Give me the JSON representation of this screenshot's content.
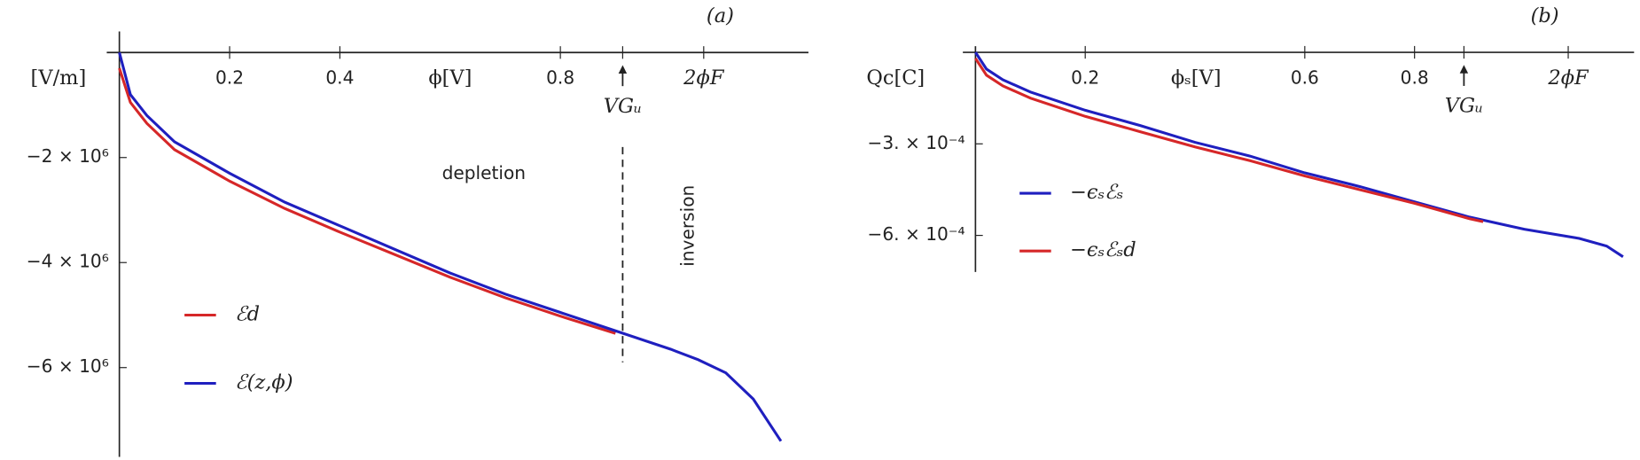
{
  "chart_data": [
    {
      "type": "line",
      "title": "(a)",
      "ylabel": "[V/m]",
      "xlabel": "ϕ[V]",
      "xlim": [
        0,
        1.25
      ],
      "ylim": [
        -7700000,
        400000
      ],
      "xticks": [
        0.2,
        0.4,
        0.8
      ],
      "yticks": [
        {
          "value": -2000000,
          "label": "−2 × 10⁶"
        },
        {
          "value": -4000000,
          "label": "−4 × 10⁶"
        },
        {
          "value": -6000000,
          "label": "−6 × 10⁶"
        }
      ],
      "markers": [
        {
          "label": "VGᵤ",
          "x": 0.913
        },
        {
          "label": "2ϕF",
          "x": 1.06
        }
      ],
      "dashed_x": 0.913,
      "regions": [
        "depletion",
        "inversion"
      ],
      "series": [
        {
          "name": "ℰd",
          "color": "#d62728",
          "x": [
            0,
            0.02,
            0.05,
            0.1,
            0.2,
            0.3,
            0.4,
            0.5,
            0.6,
            0.7,
            0.8,
            0.9
          ],
          "values": [
            -300000,
            -950000,
            -1350000,
            -1850000,
            -2450000,
            -2970000,
            -3420000,
            -3850000,
            -4280000,
            -4670000,
            -5020000,
            -5350000
          ]
        },
        {
          "name": "ℰ(z,ϕ)",
          "color": "#1f1fbf",
          "x": [
            0,
            0.02,
            0.05,
            0.1,
            0.2,
            0.3,
            0.4,
            0.5,
            0.6,
            0.7,
            0.8,
            0.9,
            1.0,
            1.05,
            1.1,
            1.15,
            1.2
          ],
          "values": [
            0,
            -800000,
            -1200000,
            -1700000,
            -2300000,
            -2850000,
            -3300000,
            -3750000,
            -4200000,
            -4600000,
            -4950000,
            -5300000,
            -5650000,
            -5850000,
            -6100000,
            -6600000,
            -7400000
          ]
        }
      ]
    },
    {
      "type": "line",
      "title": "(b)",
      "ylabel": "Qc[C]",
      "xlabel": "ϕₛ[V]",
      "xlim": [
        0,
        1.2
      ],
      "ylim": [
        -0.00072,
        2e-05
      ],
      "xticks": [
        0.2,
        0.6,
        0.8
      ],
      "yticks": [
        {
          "value": -0.0003,
          "label": "−3. × 10⁻⁴"
        },
        {
          "value": -0.0006,
          "label": "−6. × 10⁻⁴"
        }
      ],
      "markers": [
        {
          "label": "VGᵤ",
          "x": 0.89
        },
        {
          "label": "2ϕF",
          "x": 1.08
        }
      ],
      "series": [
        {
          "name": "−ϵₛℰₛ",
          "color": "#1f1fbf",
          "x": [
            0,
            0.02,
            0.05,
            0.1,
            0.2,
            0.3,
            0.4,
            0.5,
            0.6,
            0.7,
            0.8,
            0.9,
            1.0,
            1.1,
            1.15,
            1.18
          ],
          "values": [
            0,
            -5.5e-05,
            -9e-05,
            -0.00013,
            -0.00019,
            -0.00024,
            -0.000295,
            -0.00034,
            -0.000395,
            -0.00044,
            -0.00049,
            -0.00054,
            -0.00058,
            -0.00061,
            -0.000635,
            -0.00067
          ]
        },
        {
          "name": "−ϵₛℰₛd",
          "color": "#d62728",
          "x": [
            0,
            0.02,
            0.05,
            0.1,
            0.2,
            0.3,
            0.4,
            0.5,
            0.6,
            0.7,
            0.8,
            0.9,
            0.925
          ],
          "values": [
            -2e-05,
            -7.5e-05,
            -0.00011,
            -0.00015,
            -0.00021,
            -0.00026,
            -0.00031,
            -0.000355,
            -0.000405,
            -0.00045,
            -0.000495,
            -0.000545,
            -0.000555
          ]
        }
      ]
    }
  ]
}
